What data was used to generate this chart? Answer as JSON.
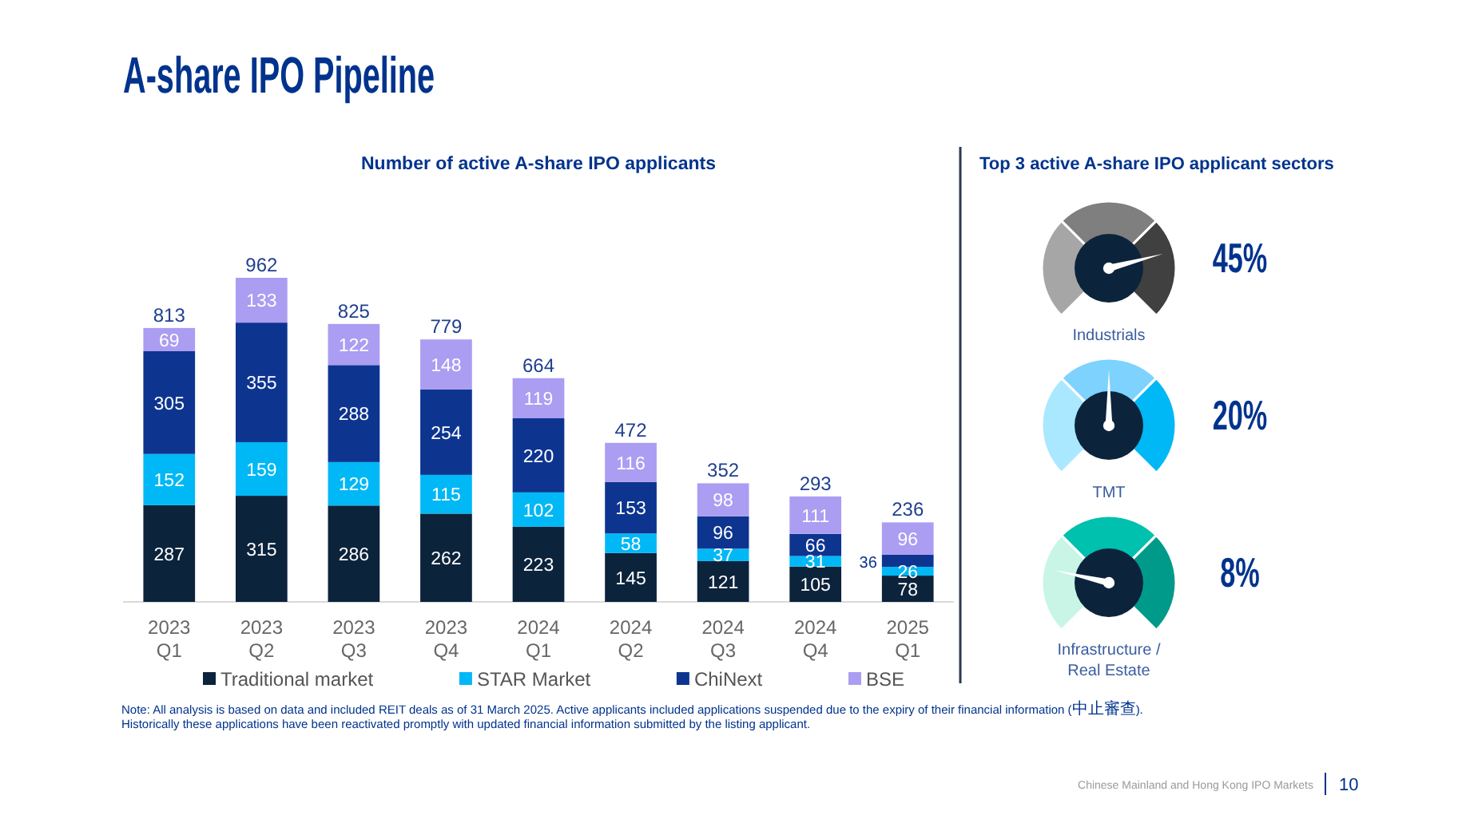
{
  "chart_data": [
    {
      "type": "bar",
      "stacked": true,
      "title": "A-share IPO Pipeline",
      "subtitle": "Number of active A-share IPO applicants",
      "categories": [
        "2023\nQ1",
        "2023\nQ2",
        "2023\nQ3",
        "2023\nQ4",
        "2024\nQ1",
        "2024\nQ2",
        "2024\nQ3",
        "2024\nQ4",
        "2025\nQ1"
      ],
      "series": [
        {
          "name": "Traditional market",
          "color": "#0c233c",
          "values": [
            287,
            315,
            286,
            262,
            223,
            145,
            121,
            105,
            78
          ]
        },
        {
          "name": "STAR Market",
          "color": "#00b8f5",
          "values": [
            152,
            159,
            129,
            115,
            102,
            58,
            37,
            31,
            26
          ]
        },
        {
          "name": "ChiNext",
          "color": "#0d3590",
          "values": [
            305,
            355,
            288,
            254,
            220,
            153,
            96,
            66,
            36
          ]
        },
        {
          "name": "BSE",
          "color": "#ab9df2",
          "values": [
            69,
            133,
            122,
            148,
            119,
            116,
            98,
            111,
            96
          ]
        }
      ],
      "data_labels": true,
      "legend": "bottom",
      "annotations": [
        {
          "text": "813",
          "x": "2023\nQ1",
          "y": 813
        },
        {
          "text": "962",
          "x": "2023\nQ2",
          "y": 962
        },
        {
          "text": "825",
          "x": "2023\nQ3",
          "y": 825
        },
        {
          "text": "779",
          "x": "2023\nQ4",
          "y": 779
        },
        {
          "text": "664",
          "x": "2024\nQ1",
          "y": 664
        },
        {
          "text": "472",
          "x": "2024\nQ2",
          "y": 472
        },
        {
          "text": "352",
          "x": "2024\nQ3",
          "y": 352
        },
        {
          "text": "293",
          "x": "2024\nQ4",
          "y": 313
        },
        {
          "text": "236",
          "x": "2025\nQ1",
          "y": 236
        },
        "Note: All analysis is based on data and included REIT deals as of 31 March 2025. Active applicants included applications suspended due to the expiry of their financial information (中止審查).",
        "Historically these applications have been reactivated promptly with updated financial information submitted by the listing applicant.",
        "Chinese Mainland and Hong Kong IPO Markets",
        "10"
      ]
    },
    {
      "type": "other",
      "title": "Top 3 active A-share IPO applicant sectors",
      "categories": [
        "Industrials",
        "TMT",
        "Infrastructure /\nReal Estate"
      ],
      "value_labels": [
        "45%",
        "20%",
        "8%"
      ]
    }
  ]
}
